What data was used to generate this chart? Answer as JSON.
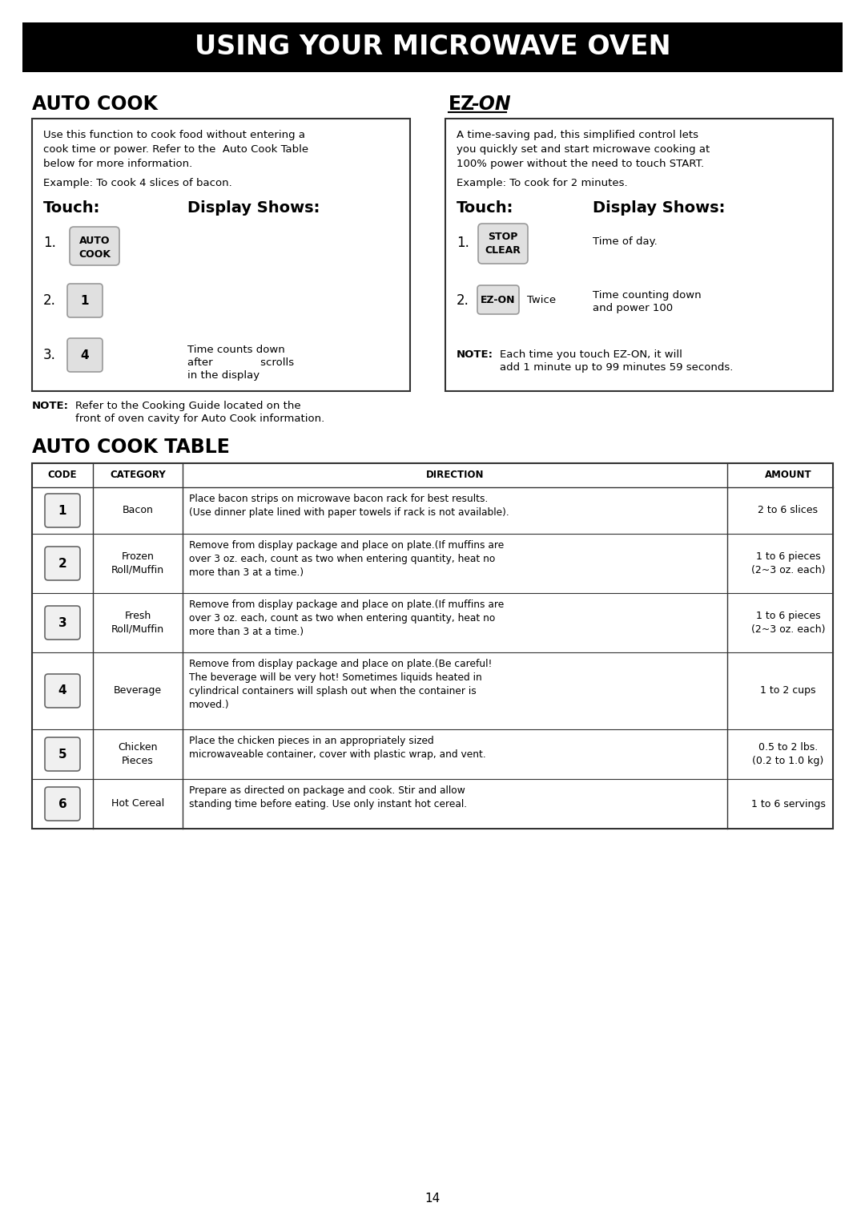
{
  "title": "USING YOUR MICROWAVE OVEN",
  "page_bg": "#ffffff",
  "page_number": "14",
  "auto_cook_header": "AUTO COOK",
  "auto_cook_body1": "Use this function to cook food without entering a",
  "auto_cook_body2": "cook time or power. Refer to the  Auto Cook Table",
  "auto_cook_body3": "below for more information.",
  "auto_cook_example": "Example: To cook 4 slices of bacon.",
  "auto_cook_touch": "Touch:",
  "auto_cook_display": "Display Shows:",
  "ez_on_header_ez": "EZ",
  "ez_on_header_on": "-ON",
  "ez_on_body1": "A time-saving pad, this simplified control lets",
  "ez_on_body2": "you quickly set and start microwave cooking at",
  "ez_on_body3": "100% power without the need to touch START.",
  "ez_on_example": "Example: To cook for 2 minutes.",
  "ez_on_touch": "Touch:",
  "ez_on_display": "Display Shows:",
  "ez_on_note_label": "NOTE:",
  "ez_on_note_line1": "Each time you touch EZ-ON, it will",
  "ez_on_note_line2": "add 1 minute up to 99 minutes 59 seconds.",
  "auto_cook_note_label": "NOTE:",
  "auto_cook_note_line1": "Refer to the Cooking Guide located on the",
  "auto_cook_note_line2": "front of oven cavity for Auto Cook information.",
  "table_header": "AUTO COOK TABLE",
  "table_columns": [
    "CODE",
    "CATEGORY",
    "DIRECTION",
    "AMOUNT"
  ],
  "table_rows": [
    {
      "code": "1",
      "category": "Bacon",
      "direction": "Place bacon strips on microwave bacon rack for best results.\n(Use dinner plate lined with paper towels if rack is not available).",
      "amount": "2 to 6 slices"
    },
    {
      "code": "2",
      "category": "Frozen\nRoll/Muffin",
      "direction": "Remove from display package and place on plate.(If muffins are\nover 3 oz. each, count as two when entering quantity, heat no\nmore than 3 at a time.)",
      "amount": "1 to 6 pieces\n(2~3 oz. each)"
    },
    {
      "code": "3",
      "category": "Fresh\nRoll/Muffin",
      "direction": "Remove from display package and place on plate.(If muffins are\nover 3 oz. each, count as two when entering quantity, heat no\nmore than 3 at a time.)",
      "amount": "1 to 6 pieces\n(2~3 oz. each)"
    },
    {
      "code": "4",
      "category": "Beverage",
      "direction": "Remove from display package and place on plate.(Be careful!\nThe beverage will be very hot! Sometimes liquids heated in\ncylindrical containers will splash out when the container is\nmoved.)",
      "amount": "1 to 2 cups"
    },
    {
      "code": "5",
      "category": "Chicken\nPieces",
      "direction": "Place the chicken pieces in an appropriately sized\nmicrowaveable container, cover with plastic wrap, and vent.",
      "amount": "0.5 to 2 lbs.\n(0.2 to 1.0 kg)"
    },
    {
      "code": "6",
      "category": "Hot Cereal",
      "direction": "Prepare as directed on package and cook. Stir and allow\nstanding time before eating. Use only instant hot cereal.",
      "amount": "1 to 6 servings"
    }
  ]
}
